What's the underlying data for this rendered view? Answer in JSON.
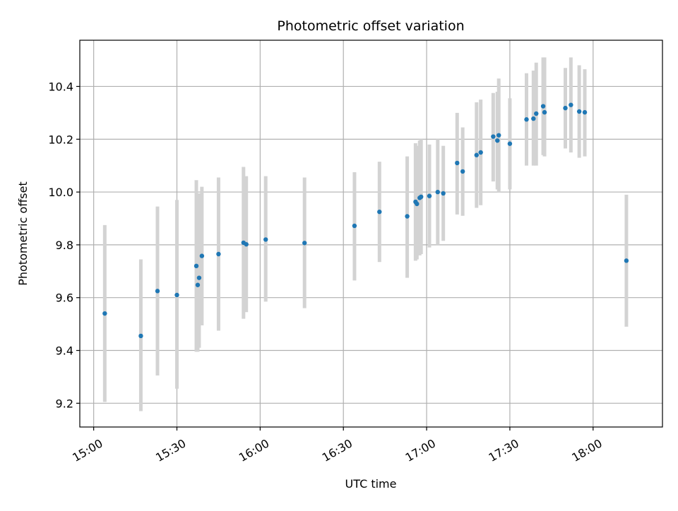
{
  "chart_data": {
    "type": "scatter",
    "title": "Photometric offset variation",
    "xlabel": "UTC time",
    "ylabel": "Photometric offset",
    "xlim": [
      "14:55",
      "18:25"
    ],
    "ylim": [
      9.11,
      10.575
    ],
    "x_ticks": [
      "15:00",
      "15:30",
      "16:00",
      "16:30",
      "17:00",
      "17:30",
      "18:00"
    ],
    "y_ticks": [
      9.2,
      9.4,
      9.6,
      9.8,
      10.0,
      10.2,
      10.4
    ],
    "grid": true,
    "colors": {
      "point": "#1f77b4",
      "errorbar": "#d3d3d3"
    },
    "points": [
      {
        "t": "15:04",
        "y": 9.54,
        "lo": 9.205,
        "hi": 9.875
      },
      {
        "t": "15:17",
        "y": 9.455,
        "lo": 9.17,
        "hi": 9.745
      },
      {
        "t": "15:23",
        "y": 9.625,
        "lo": 9.305,
        "hi": 9.945
      },
      {
        "t": "15:30",
        "y": 9.61,
        "lo": 9.255,
        "hi": 9.97
      },
      {
        "t": "15:37",
        "y": 9.72,
        "lo": 9.395,
        "hi": 10.045
      },
      {
        "t": "15:37.5",
        "y": 9.648,
        "lo": 9.395,
        "hi": 9.955
      },
      {
        "t": "15:38",
        "y": 9.675,
        "lo": 9.41,
        "hi": 9.995
      },
      {
        "t": "15:39",
        "y": 9.758,
        "lo": 9.495,
        "hi": 10.02
      },
      {
        "t": "15:45",
        "y": 9.765,
        "lo": 9.475,
        "hi": 10.055
      },
      {
        "t": "15:54",
        "y": 9.808,
        "lo": 9.52,
        "hi": 10.095
      },
      {
        "t": "15:55",
        "y": 9.802,
        "lo": 9.545,
        "hi": 10.06
      },
      {
        "t": "16:02",
        "y": 9.82,
        "lo": 9.585,
        "hi": 10.06
      },
      {
        "t": "16:16",
        "y": 9.807,
        "lo": 9.56,
        "hi": 10.055
      },
      {
        "t": "16:34",
        "y": 9.872,
        "lo": 9.665,
        "hi": 10.075
      },
      {
        "t": "16:43",
        "y": 9.925,
        "lo": 9.735,
        "hi": 10.115
      },
      {
        "t": "16:53",
        "y": 9.908,
        "lo": 9.675,
        "hi": 10.135
      },
      {
        "t": "16:56",
        "y": 9.963,
        "lo": 9.74,
        "hi": 10.185
      },
      {
        "t": "16:56.5",
        "y": 9.955,
        "lo": 9.745,
        "hi": 10.175
      },
      {
        "t": "16:57.5",
        "y": 9.978,
        "lo": 9.76,
        "hi": 10.195
      },
      {
        "t": "16:58",
        "y": 9.982,
        "lo": 9.765,
        "hi": 10.2
      },
      {
        "t": "17:01",
        "y": 9.985,
        "lo": 9.79,
        "hi": 10.18
      },
      {
        "t": "17:04",
        "y": 10.0,
        "lo": 9.8,
        "hi": 10.2
      },
      {
        "t": "17:06",
        "y": 9.995,
        "lo": 9.815,
        "hi": 10.175
      },
      {
        "t": "17:11",
        "y": 10.11,
        "lo": 9.915,
        "hi": 10.3
      },
      {
        "t": "17:13",
        "y": 10.078,
        "lo": 9.91,
        "hi": 10.245
      },
      {
        "t": "17:18",
        "y": 10.14,
        "lo": 9.94,
        "hi": 10.34
      },
      {
        "t": "17:19.5",
        "y": 10.15,
        "lo": 9.95,
        "hi": 10.35
      },
      {
        "t": "17:24",
        "y": 10.21,
        "lo": 10.04,
        "hi": 10.375
      },
      {
        "t": "17:25.5",
        "y": 10.195,
        "lo": 10.01,
        "hi": 10.38
      },
      {
        "t": "17:26",
        "y": 10.215,
        "lo": 10.0,
        "hi": 10.43
      },
      {
        "t": "17:30",
        "y": 10.183,
        "lo": 10.01,
        "hi": 10.355
      },
      {
        "t": "17:36",
        "y": 10.275,
        "lo": 10.1,
        "hi": 10.45
      },
      {
        "t": "17:38.5",
        "y": 10.278,
        "lo": 10.1,
        "hi": 10.46
      },
      {
        "t": "17:39.5",
        "y": 10.297,
        "lo": 10.1,
        "hi": 10.49
      },
      {
        "t": "17:42",
        "y": 10.325,
        "lo": 10.14,
        "hi": 10.51
      },
      {
        "t": "17:42.5",
        "y": 10.302,
        "lo": 10.135,
        "hi": 10.51
      },
      {
        "t": "17:50",
        "y": 10.318,
        "lo": 10.165,
        "hi": 10.47
      },
      {
        "t": "17:52",
        "y": 10.33,
        "lo": 10.15,
        "hi": 10.51
      },
      {
        "t": "17:55",
        "y": 10.305,
        "lo": 10.13,
        "hi": 10.48
      },
      {
        "t": "17:57",
        "y": 10.302,
        "lo": 10.135,
        "hi": 10.465
      },
      {
        "t": "18:12",
        "y": 9.74,
        "lo": 9.49,
        "hi": 9.99
      }
    ]
  }
}
